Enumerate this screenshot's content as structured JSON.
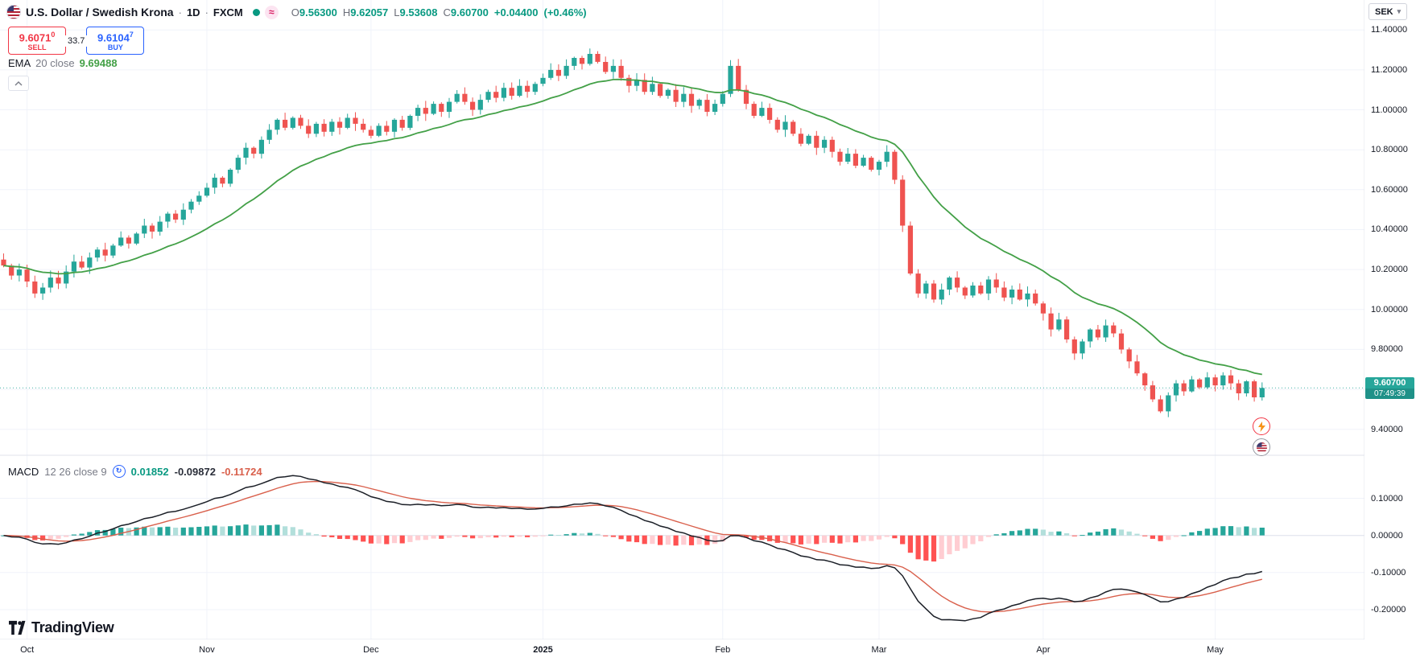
{
  "header": {
    "title": "U.S. Dollar / Swedish Krona",
    "separator": "·",
    "interval": "1D",
    "exchange": "FXCM",
    "status": {
      "dot_color": "#089981",
      "approx_symbol": "≈"
    },
    "ohlc": {
      "o_label": "O",
      "o": "9.56300",
      "h_label": "H",
      "h": "9.62057",
      "l_label": "L",
      "l": "9.53608",
      "c_label": "C",
      "c": "9.60700",
      "change": "+0.04400",
      "change_pct": "(+0.46%)"
    },
    "sell": {
      "price": "9.6071",
      "sup": "0",
      "label": "SELL"
    },
    "spread": "33.7",
    "buy": {
      "price": "9.6104",
      "sup": "7",
      "label": "BUY"
    },
    "ema_legend": {
      "name": "EMA",
      "params": "20 close",
      "value": "9.69488"
    }
  },
  "macd_legend": {
    "name": "MACD",
    "params": "12 26 close 9",
    "hist_value": "0.01852",
    "macd_value": "-0.09872",
    "signal_value": "-0.11724"
  },
  "price_axis": {
    "currency": "SEK",
    "caret": "▾",
    "ticks": [
      {
        "v": 11.4,
        "t": "11.40000"
      },
      {
        "v": 11.2,
        "t": "11.20000"
      },
      {
        "v": 11.0,
        "t": "11.00000"
      },
      {
        "v": 10.8,
        "t": "10.80000"
      },
      {
        "v": 10.6,
        "t": "10.60000"
      },
      {
        "v": 10.4,
        "t": "10.40000"
      },
      {
        "v": 10.2,
        "t": "10.20000"
      },
      {
        "v": 10.0,
        "t": "10.00000"
      },
      {
        "v": 9.8,
        "t": "9.80000"
      },
      {
        "v": 9.4,
        "t": "9.40000"
      }
    ],
    "badge": {
      "price": "9.60700",
      "countdown": "07:49:39"
    }
  },
  "macd_axis": {
    "ticks": [
      {
        "v": 0.1,
        "t": "0.10000"
      },
      {
        "v": 0.0,
        "t": "0.00000"
      },
      {
        "v": -0.1,
        "t": "-0.10000"
      },
      {
        "v": -0.2,
        "t": "-0.20000"
      }
    ]
  },
  "time_axis": {
    "months": [
      {
        "label": "Oct",
        "i": 3
      },
      {
        "label": "Nov",
        "i": 26
      },
      {
        "label": "Dec",
        "i": 47
      },
      {
        "label": "2025",
        "i": 69,
        "bold": true
      },
      {
        "label": "Feb",
        "i": 92
      },
      {
        "label": "Mar",
        "i": 112
      },
      {
        "label": "Apr",
        "i": 133
      },
      {
        "label": "May",
        "i": 155
      }
    ]
  },
  "branding": {
    "name": "TradingView"
  },
  "chart_data": {
    "type": "candlestick",
    "title": "U.S. Dollar / Swedish Krona · 1D · FXCM",
    "symbol": "USD/SEK",
    "interval": "1D",
    "indicators": [
      "EMA 20 close",
      "MACD 12 26 close 9"
    ],
    "legend_position": "top-left",
    "grid": true,
    "first_open": 10.25,
    "last_price": 9.607,
    "ema_period": 20,
    "macd_params": [
      12,
      26,
      9
    ],
    "price_scale": {
      "min": 9.27,
      "max": 11.55
    },
    "macd_scale_ticks": [
      0.1,
      0.0,
      -0.1,
      -0.2
    ],
    "closes": [
      10.22,
      10.17,
      10.2,
      10.14,
      10.08,
      10.11,
      10.16,
      10.13,
      10.19,
      10.24,
      10.21,
      10.26,
      10.3,
      10.27,
      10.32,
      10.36,
      10.33,
      10.38,
      10.42,
      10.39,
      10.44,
      10.48,
      10.45,
      10.5,
      10.54,
      10.57,
      10.61,
      10.66,
      10.63,
      10.7,
      10.76,
      10.81,
      10.78,
      10.85,
      10.9,
      10.95,
      10.91,
      10.96,
      10.92,
      10.88,
      10.93,
      10.89,
      10.94,
      10.91,
      10.96,
      10.93,
      10.9,
      10.87,
      10.92,
      10.89,
      10.95,
      10.91,
      10.97,
      11.01,
      10.98,
      11.03,
      10.99,
      11.04,
      11.08,
      11.04,
      11.0,
      11.05,
      11.09,
      11.06,
      11.11,
      11.07,
      11.12,
      11.09,
      11.13,
      11.16,
      11.2,
      11.17,
      11.22,
      11.26,
      11.23,
      11.28,
      11.24,
      11.19,
      11.22,
      11.16,
      11.12,
      11.15,
      11.09,
      11.13,
      11.07,
      11.1,
      11.04,
      11.08,
      11.02,
      11.05,
      10.99,
      11.03,
      11.08,
      11.22,
      11.1,
      11.03,
      10.97,
      11.01,
      10.95,
      10.9,
      10.94,
      10.88,
      10.83,
      10.87,
      10.81,
      10.85,
      10.79,
      10.74,
      10.78,
      10.72,
      10.76,
      10.7,
      10.74,
      10.79,
      10.65,
      10.42,
      10.18,
      10.08,
      10.13,
      10.05,
      10.1,
      10.16,
      10.11,
      10.07,
      10.12,
      10.08,
      10.15,
      10.11,
      10.06,
      10.1,
      10.05,
      10.08,
      10.03,
      9.98,
      9.9,
      9.95,
      9.85,
      9.78,
      9.84,
      9.9,
      9.86,
      9.92,
      9.88,
      9.8,
      9.74,
      9.68,
      9.62,
      9.55,
      9.49,
      9.57,
      9.63,
      9.59,
      9.65,
      9.61,
      9.66,
      9.62,
      9.67,
      9.63,
      9.58,
      9.64,
      9.56,
      9.607
    ],
    "colors": {
      "up": "#26A69A",
      "down": "#EF5350",
      "ema": "#43A047",
      "macd": "#1B1F27",
      "signal": "#D9604C",
      "hist_up": "#26A69A",
      "hist_up_weak": "#B2DFDB",
      "hist_dn": "#FF5252",
      "hist_dn_weak": "#FFCDD2",
      "grid": "#F0F3FA",
      "badge": "#26A69A",
      "text_up": "#089981",
      "sell_red": "#F23645",
      "buy_blue": "#2962FF"
    }
  }
}
